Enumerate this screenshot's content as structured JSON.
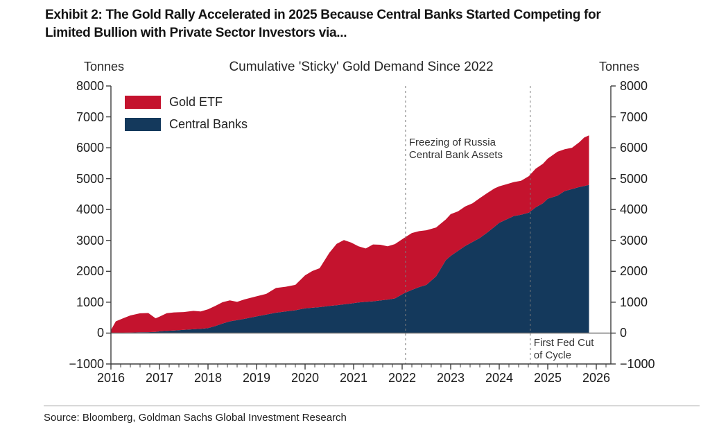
{
  "exhibit": {
    "title_line1": "Exhibit 2: The Gold Rally Accelerated in 2025 Because Central Banks Started Competing for",
    "title_line2": "Limited Bullion with Private Sector Investors via...",
    "source": "Source: Bloomberg, Goldman Sachs Global Investment Research"
  },
  "chart_data": {
    "type": "area",
    "stacked": true,
    "title": "Cumulative 'Sticky' Gold Demand Since 2022",
    "y_axis_label_left": "Tonnes",
    "y_axis_label_right": "Tonnes",
    "xlim": [
      2016,
      2026.3
    ],
    "ylim": [
      -1000,
      8000
    ],
    "grid": "zero-line-only",
    "legend_position": "upper-left-inside",
    "legend": [
      {
        "label": "Gold ETF",
        "color": "#c4132e"
      },
      {
        "label": "Central Banks",
        "color": "#14395c"
      }
    ],
    "colors": {
      "gold_etf": "#c4132e",
      "central_banks": "#14395c",
      "axis": "#3d3d3d",
      "zero_line": "#6e6e6e",
      "dashed_line": "#7a7a7a",
      "text": "#1c1c1c"
    },
    "y_ticks": {
      "values": [
        8000,
        7000,
        6000,
        5000,
        4000,
        3000,
        2000,
        1000,
        0,
        -1000
      ],
      "labels": [
        "8000",
        "7000",
        "6000",
        "5000",
        "4000",
        "3000",
        "2000",
        "1000",
        "0",
        "−1000"
      ]
    },
    "x_ticks": {
      "values": [
        2016,
        2017,
        2018,
        2019,
        2020,
        2021,
        2022,
        2023,
        2024,
        2025,
        2026
      ],
      "labels": [
        "2016",
        "2017",
        "2018",
        "2019",
        "2020",
        "2021",
        "2022",
        "2023",
        "2024",
        "2025",
        "2026"
      ],
      "minor_step": 0.2
    },
    "x": [
      2016.0,
      2016.1,
      2016.25,
      2016.4,
      2016.6,
      2016.77,
      2016.92,
      2017.0,
      2017.15,
      2017.3,
      2017.5,
      2017.7,
      2017.85,
      2018.0,
      2018.15,
      2018.3,
      2018.45,
      2018.6,
      2018.75,
      2019.0,
      2019.2,
      2019.4,
      2019.6,
      2019.8,
      2020.0,
      2020.15,
      2020.3,
      2020.5,
      2020.65,
      2020.8,
      2020.95,
      2021.1,
      2021.25,
      2021.4,
      2021.55,
      2021.7,
      2021.85,
      2022.04,
      2022.2,
      2022.35,
      2022.5,
      2022.7,
      2022.9,
      2023.0,
      2023.15,
      2023.3,
      2023.45,
      2023.6,
      2023.75,
      2023.9,
      2024.0,
      2024.15,
      2024.3,
      2024.45,
      2024.61,
      2024.75,
      2024.9,
      2025.0,
      2025.2,
      2025.35,
      2025.5,
      2025.65,
      2025.75,
      2025.85
    ],
    "series": [
      {
        "name": "Central Banks",
        "color": "#14395c",
        "values": [
          0,
          5,
          10,
          15,
          25,
          30,
          40,
          55,
          70,
          85,
          105,
          125,
          140,
          160,
          230,
          310,
          380,
          420,
          460,
          540,
          600,
          660,
          700,
          740,
          800,
          820,
          840,
          880,
          900,
          930,
          960,
          990,
          1010,
          1030,
          1055,
          1085,
          1120,
          1290,
          1400,
          1490,
          1560,
          1840,
          2360,
          2500,
          2660,
          2820,
          2950,
          3080,
          3250,
          3440,
          3570,
          3680,
          3790,
          3830,
          3900,
          4070,
          4200,
          4350,
          4450,
          4600,
          4660,
          4730,
          4760,
          4800
        ]
      },
      {
        "name": "Gold ETF",
        "color": "#c4132e",
        "values": [
          100,
          375,
          470,
          555,
          615,
          620,
          440,
          475,
          575,
          585,
          575,
          595,
          560,
          610,
          650,
          690,
          680,
          590,
          630,
          650,
          670,
          800,
          800,
          820,
          1070,
          1190,
          1260,
          1720,
          1990,
          2080,
          1970,
          1820,
          1730,
          1840,
          1805,
          1725,
          1760,
          1790,
          1840,
          1810,
          1770,
          1580,
          1320,
          1350,
          1280,
          1280,
          1250,
          1290,
          1280,
          1240,
          1180,
          1140,
          1100,
          1100,
          1180,
          1250,
          1280,
          1300,
          1420,
          1350,
          1340,
          1450,
          1570,
          1600
        ]
      }
    ],
    "event_lines": [
      {
        "x": 2022.07
      },
      {
        "x": 2024.64
      }
    ],
    "annotations": [
      {
        "lines": [
          "Freezing of Russia",
          "Central Bank Assets"
        ],
        "x": 2022.07,
        "valign": "top"
      },
      {
        "lines": [
          "First Fed Cut",
          "of Cycle"
        ],
        "x": 2024.64,
        "valign": "bottom"
      }
    ]
  }
}
